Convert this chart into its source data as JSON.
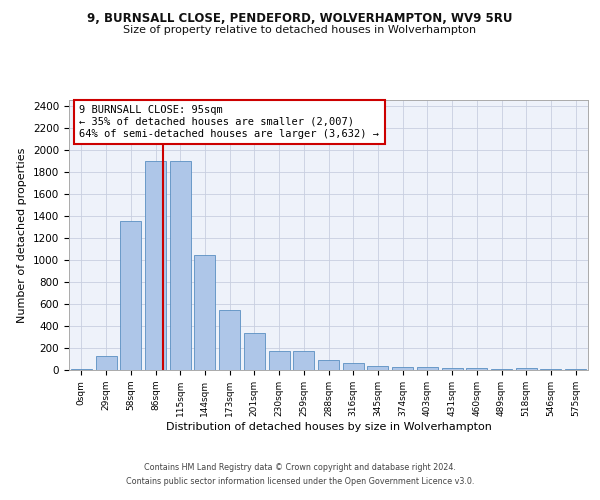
{
  "title1": "9, BURNSALL CLOSE, PENDEFORD, WOLVERHAMPTON, WV9 5RU",
  "title2": "Size of property relative to detached houses in Wolverhampton",
  "xlabel": "Distribution of detached houses by size in Wolverhampton",
  "ylabel": "Number of detached properties",
  "bar_labels": [
    "0sqm",
    "29sqm",
    "58sqm",
    "86sqm",
    "115sqm",
    "144sqm",
    "173sqm",
    "201sqm",
    "230sqm",
    "259sqm",
    "288sqm",
    "316sqm",
    "345sqm",
    "374sqm",
    "403sqm",
    "431sqm",
    "460sqm",
    "489sqm",
    "518sqm",
    "546sqm",
    "575sqm"
  ],
  "bar_values": [
    10,
    125,
    1350,
    1900,
    1900,
    1045,
    540,
    335,
    170,
    170,
    95,
    60,
    38,
    30,
    25,
    18,
    20,
    8,
    20,
    8,
    10
  ],
  "bar_color": "#aec6e8",
  "bar_edge_color": "#5a8fc2",
  "annotation_text": "9 BURNSALL CLOSE: 95sqm\n← 35% of detached houses are smaller (2,007)\n64% of semi-detached houses are larger (3,632) →",
  "red_line_color": "#cc0000",
  "annotation_box_color": "#ffffff",
  "annotation_box_edge": "#cc0000",
  "ylim": [
    0,
    2450
  ],
  "yticks": [
    0,
    200,
    400,
    600,
    800,
    1000,
    1200,
    1400,
    1600,
    1800,
    2000,
    2200,
    2400
  ],
  "footer1": "Contains HM Land Registry data © Crown copyright and database right 2024.",
  "footer2": "Contains public sector information licensed under the Open Government Licence v3.0.",
  "bg_color": "#eef2fa",
  "grid_color": "#c8cfe0"
}
